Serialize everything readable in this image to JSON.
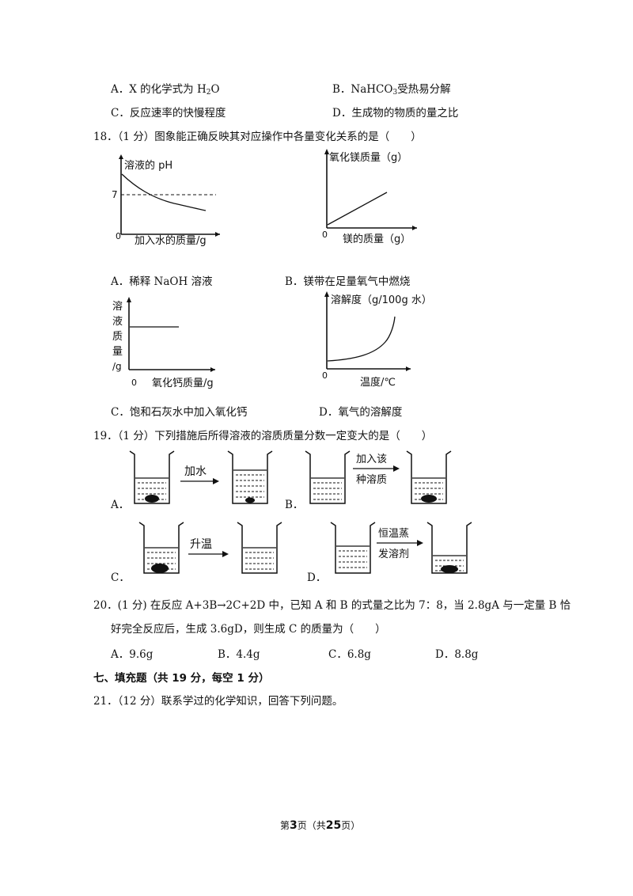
{
  "q17_options": {
    "a_prefix": "A．X 的化学式为 H",
    "a_sub": "2",
    "a_suffix": "O",
    "b_prefix": "B．NaHCO",
    "b_sub": "3",
    "b_suffix": "受热易分解",
    "c": "C．反应速率的快慢程度",
    "d": "D．生成物的物质的量之比"
  },
  "q18": {
    "stem": "18．（1 分）图象能正确反映其对应操作中各量变化关系的是（　　）",
    "graph_a": {
      "ylabel": "溶液的 pH",
      "tick7": "7",
      "origin": "0",
      "xlabel": "加入水的质量/g"
    },
    "graph_b": {
      "ylabel": "氧化镁质量（g）",
      "origin": "0",
      "xlabel": "镁的质量（g）"
    },
    "graph_c": {
      "ylabel_chars": [
        "溶",
        "液",
        "质",
        "量",
        "/g"
      ],
      "origin": "0",
      "xlabel": "氧化钙质量/g"
    },
    "graph_d": {
      "ylabel": "溶解度（g/100g 水）",
      "origin": "0",
      "xlabel": "温度/℃"
    },
    "option_a": "A．稀释 NaOH 溶液",
    "option_b": "B．镁带在足量氧气中燃烧",
    "option_c": "C．饱和石灰水中加入氧化钙",
    "option_d": "D．氧气的溶解度"
  },
  "q19": {
    "stem": "19．（1 分）下列措施后所得溶液的溶质质量分数一定变大的是（　　）",
    "a_label": "A．",
    "a_arrow": "加水",
    "b_label": "B．",
    "b_arrow_line1": "加入该",
    "b_arrow_line2": "种溶质",
    "c_label": "C．",
    "c_arrow": "升温",
    "d_label": "D．",
    "d_arrow_line1": "恒温蒸",
    "d_arrow_line2": "发溶剂"
  },
  "q20": {
    "line1": "20．(1 分) 在反应 A+3B→2C+2D 中，已知 A 和 B 的式量之比为 7：8，当 2.8gA 与一定量 B 恰",
    "line2": "好完全反应后，生成 3.6gD，则生成 C 的质量为（　　）",
    "option_a": "A．9.6g",
    "option_b": "B．4.4g",
    "option_c": "C．6.8g",
    "option_d": "D．8.8g"
  },
  "section7": {
    "heading": "七、填充题（共 19 分，每空 1 分）"
  },
  "q21": {
    "stem": "21．（12 分）联系学过的化学知识，回答下列问题。"
  },
  "footer": {
    "prefix": "第",
    "page": "3",
    "middle": "页（共",
    "total": "25",
    "suffix": "页）"
  }
}
